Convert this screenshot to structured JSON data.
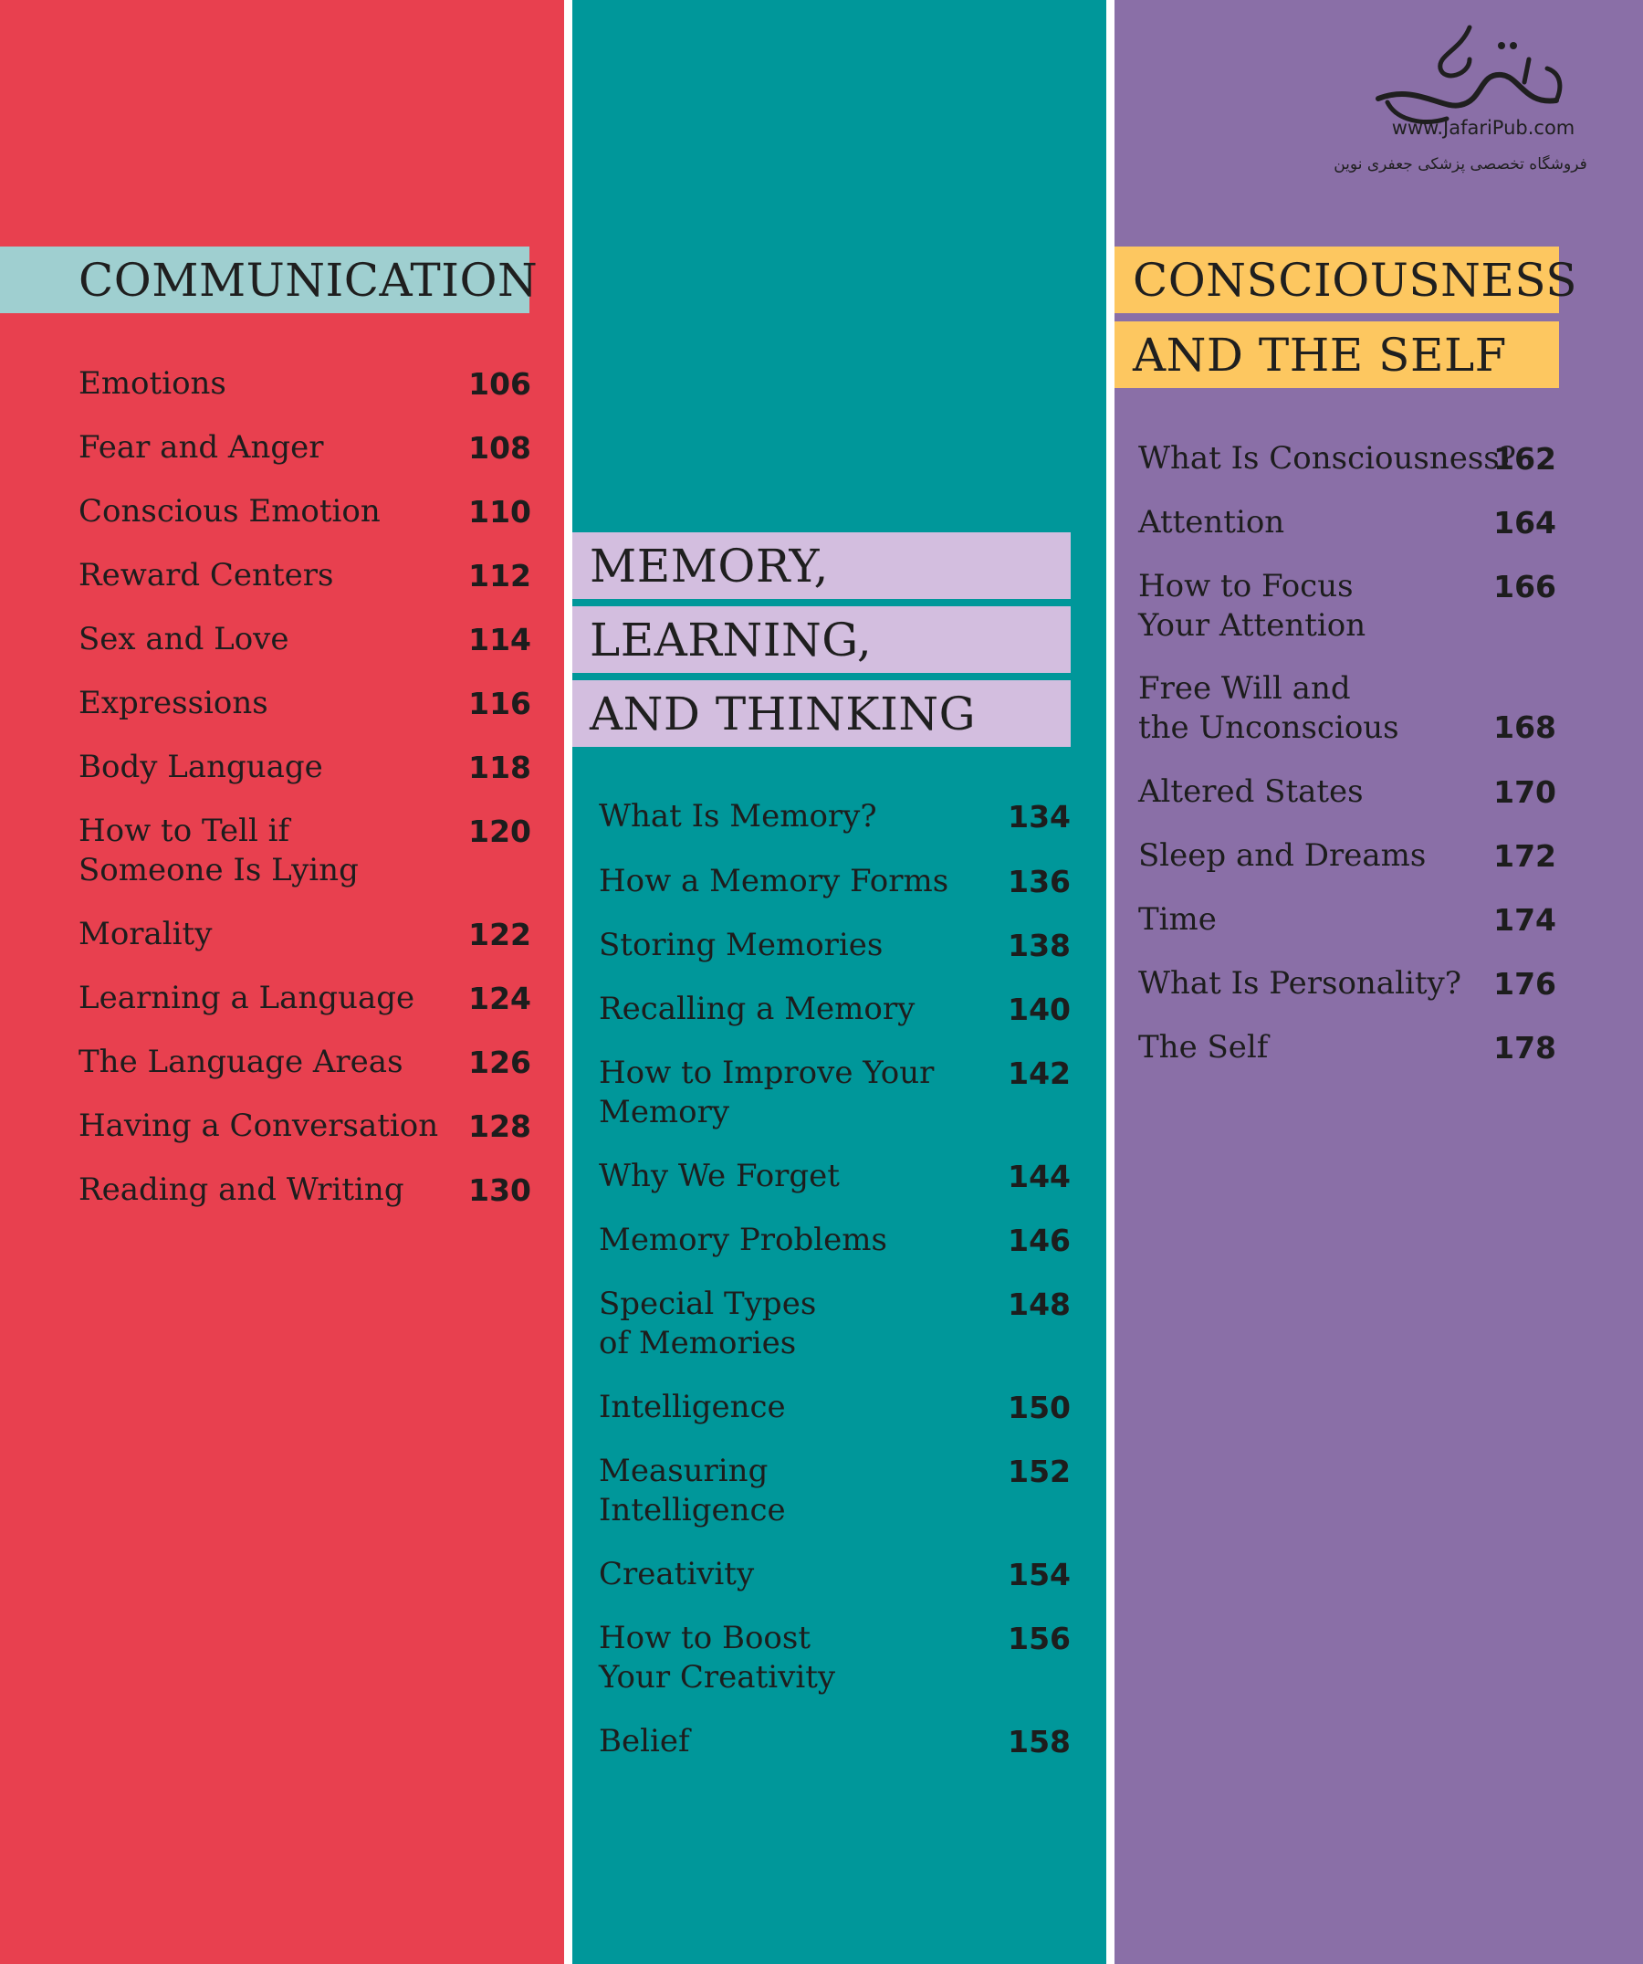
{
  "colors": {
    "red": "#e8404f",
    "teal": "#00979a",
    "purple": "#8a6fa7",
    "communication_band": "#9fcfd0",
    "memory_band": "#d3bedf",
    "consciousness_band": "#fdc760"
  },
  "publisher": {
    "icon": "publisher-calligraphy-logo",
    "url": "www.JafariPub.com",
    "tagline_fa": "فروشگاه تخصصی پزشکی جعفری نوین"
  },
  "sections": {
    "communication": {
      "title": "COMMUNICATION",
      "entries": [
        {
          "title": "Emotions",
          "page": "106"
        },
        {
          "title": "Fear and Anger",
          "page": "108"
        },
        {
          "title": "Conscious Emotion",
          "page": "110"
        },
        {
          "title": "Reward Centers",
          "page": "112"
        },
        {
          "title": "Sex and Love",
          "page": "114"
        },
        {
          "title": "Expressions",
          "page": "116"
        },
        {
          "title": "Body Language",
          "page": "118"
        },
        {
          "title": "How to Tell if\nSomeone Is Lying",
          "page": "120"
        },
        {
          "title": "Morality",
          "page": "122"
        },
        {
          "title": "Learning a Language",
          "page": "124"
        },
        {
          "title": "The Language Areas",
          "page": "126"
        },
        {
          "title": "Having a Conversation",
          "page": "128"
        },
        {
          "title": "Reading and Writing",
          "page": "130"
        }
      ]
    },
    "memory": {
      "title_lines": [
        "MEMORY,",
        "LEARNING,",
        "AND THINKING"
      ],
      "entries": [
        {
          "title": "What Is Memory?",
          "page": "134"
        },
        {
          "title": "How a Memory Forms",
          "page": "136"
        },
        {
          "title": "Storing Memories",
          "page": "138"
        },
        {
          "title": "Recalling a Memory",
          "page": "140"
        },
        {
          "title": "How to Improve Your\nMemory",
          "page": "142"
        },
        {
          "title": "Why We Forget",
          "page": "144"
        },
        {
          "title": "Memory Problems",
          "page": "146"
        },
        {
          "title": "Special Types\nof Memories",
          "page": "148"
        },
        {
          "title": "Intelligence",
          "page": "150"
        },
        {
          "title": "Measuring\nIntelligence",
          "page": "152"
        },
        {
          "title": "Creativity",
          "page": "154"
        },
        {
          "title": "How to Boost\nYour Creativity",
          "page": "156"
        },
        {
          "title": "Belief",
          "page": "158"
        }
      ]
    },
    "consciousness": {
      "title_lines": [
        "CONSCIOUSNESS",
        "AND THE SELF"
      ],
      "entries": [
        {
          "title": "What Is Consciousness?",
          "page": "162"
        },
        {
          "title": "Attention",
          "page": "164"
        },
        {
          "title": "How to Focus\nYour Attention",
          "page": "166"
        },
        {
          "title": "Free Will and\nthe Unconscious",
          "page": "168"
        },
        {
          "title": "Altered States",
          "page": "170"
        },
        {
          "title": "Sleep and Dreams",
          "page": "172"
        },
        {
          "title": "Time",
          "page": "174"
        },
        {
          "title": "What Is Personality?",
          "page": "176"
        },
        {
          "title": "The Self",
          "page": "178"
        }
      ]
    }
  }
}
